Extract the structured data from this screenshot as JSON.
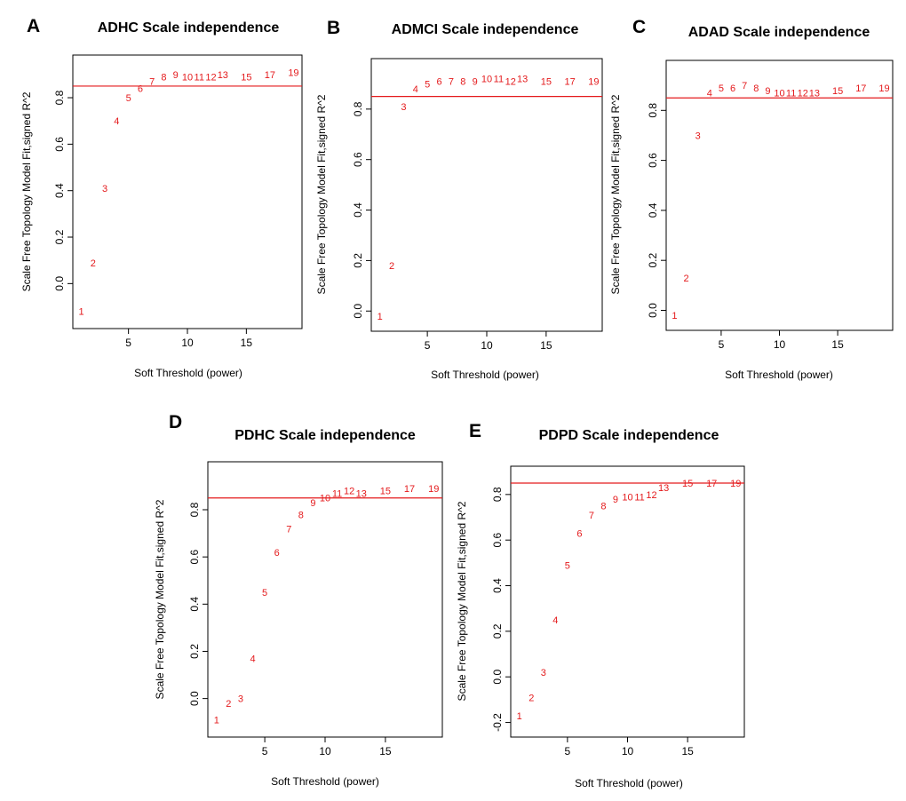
{
  "chart_data": [
    {
      "type": "scatter",
      "panel": "A",
      "title": "ADHC Scale independence",
      "xlabel": "Soft Threshold (power)",
      "ylabel": "Scale Free Topology Model Fit,signed R^2",
      "xlim": [
        1,
        19
      ],
      "ylim": [
        -0.15,
        0.94
      ],
      "xticks": [
        5,
        10,
        15
      ],
      "yticks": [
        0.0,
        0.2,
        0.4,
        0.6,
        0.8
      ],
      "threshold": 0.85,
      "threshold_color": "#e41a1c",
      "point_color": "#e41a1c",
      "points": [
        {
          "x": 1,
          "y": -0.12,
          "label": "1"
        },
        {
          "x": 2,
          "y": 0.09,
          "label": "2"
        },
        {
          "x": 3,
          "y": 0.41,
          "label": "3"
        },
        {
          "x": 4,
          "y": 0.7,
          "label": "4"
        },
        {
          "x": 5,
          "y": 0.8,
          "label": "5"
        },
        {
          "x": 6,
          "y": 0.84,
          "label": "6"
        },
        {
          "x": 7,
          "y": 0.87,
          "label": "7"
        },
        {
          "x": 8,
          "y": 0.89,
          "label": "8"
        },
        {
          "x": 9,
          "y": 0.9,
          "label": "9"
        },
        {
          "x": 10,
          "y": 0.89,
          "label": "10"
        },
        {
          "x": 11,
          "y": 0.89,
          "label": "11"
        },
        {
          "x": 12,
          "y": 0.89,
          "label": "12"
        },
        {
          "x": 13,
          "y": 0.9,
          "label": "13"
        },
        {
          "x": 15,
          "y": 0.89,
          "label": "15"
        },
        {
          "x": 17,
          "y": 0.9,
          "label": "17"
        },
        {
          "x": 19,
          "y": 0.91,
          "label": "19"
        }
      ]
    },
    {
      "type": "scatter",
      "panel": "B",
      "title": "ADMCI Scale independence",
      "xlabel": "Soft Threshold (power)",
      "ylabel": "Scale Free Topology Model Fit,signed R^2",
      "xlim": [
        1,
        19
      ],
      "ylim": [
        -0.04,
        0.96
      ],
      "xticks": [
        5,
        10,
        15
      ],
      "yticks": [
        0.0,
        0.2,
        0.4,
        0.6,
        0.8
      ],
      "threshold": 0.85,
      "threshold_color": "#e41a1c",
      "point_color": "#e41a1c",
      "points": [
        {
          "x": 1,
          "y": -0.02,
          "label": "1"
        },
        {
          "x": 2,
          "y": 0.18,
          "label": "2"
        },
        {
          "x": 3,
          "y": 0.81,
          "label": "3"
        },
        {
          "x": 4,
          "y": 0.88,
          "label": "4"
        },
        {
          "x": 5,
          "y": 0.9,
          "label": "5"
        },
        {
          "x": 6,
          "y": 0.91,
          "label": "6"
        },
        {
          "x": 7,
          "y": 0.91,
          "label": "7"
        },
        {
          "x": 8,
          "y": 0.91,
          "label": "8"
        },
        {
          "x": 9,
          "y": 0.91,
          "label": "9"
        },
        {
          "x": 10,
          "y": 0.92,
          "label": "10"
        },
        {
          "x": 11,
          "y": 0.92,
          "label": "11"
        },
        {
          "x": 12,
          "y": 0.91,
          "label": "12"
        },
        {
          "x": 13,
          "y": 0.92,
          "label": "13"
        },
        {
          "x": 15,
          "y": 0.91,
          "label": "15"
        },
        {
          "x": 17,
          "y": 0.91,
          "label": "17"
        },
        {
          "x": 19,
          "y": 0.91,
          "label": "19"
        }
      ]
    },
    {
      "type": "scatter",
      "panel": "C",
      "title": "ADAD Scale independence",
      "xlabel": "Soft Threshold (power)",
      "ylabel": "Scale Free Topology Model Fit,signed R^2",
      "xlim": [
        1,
        19
      ],
      "ylim": [
        -0.04,
        0.96
      ],
      "xticks": [
        5,
        10,
        15
      ],
      "yticks": [
        0.0,
        0.2,
        0.4,
        0.6,
        0.8
      ],
      "threshold": 0.85,
      "threshold_color": "#e41a1c",
      "point_color": "#e41a1c",
      "points": [
        {
          "x": 1,
          "y": -0.02,
          "label": "1"
        },
        {
          "x": 2,
          "y": 0.13,
          "label": "2"
        },
        {
          "x": 3,
          "y": 0.7,
          "label": "3"
        },
        {
          "x": 4,
          "y": 0.87,
          "label": "4"
        },
        {
          "x": 5,
          "y": 0.89,
          "label": "5"
        },
        {
          "x": 6,
          "y": 0.89,
          "label": "6"
        },
        {
          "x": 7,
          "y": 0.9,
          "label": "7"
        },
        {
          "x": 8,
          "y": 0.89,
          "label": "8"
        },
        {
          "x": 9,
          "y": 0.88,
          "label": "9"
        },
        {
          "x": 10,
          "y": 0.87,
          "label": "10"
        },
        {
          "x": 11,
          "y": 0.87,
          "label": "11"
        },
        {
          "x": 12,
          "y": 0.87,
          "label": "12"
        },
        {
          "x": 13,
          "y": 0.87,
          "label": "13"
        },
        {
          "x": 15,
          "y": 0.88,
          "label": "15"
        },
        {
          "x": 17,
          "y": 0.89,
          "label": "17"
        },
        {
          "x": 19,
          "y": 0.89,
          "label": "19"
        }
      ]
    },
    {
      "type": "scatter",
      "panel": "D",
      "title": "PDHC Scale independence",
      "xlabel": "Soft Threshold (power)",
      "ylabel": "Scale Free Topology Model Fit,signed R^2",
      "xlim": [
        1,
        19
      ],
      "ylim": [
        -0.12,
        0.96
      ],
      "xticks": [
        5,
        10,
        15
      ],
      "yticks": [
        0.0,
        0.2,
        0.4,
        0.6,
        0.8
      ],
      "threshold": 0.85,
      "threshold_color": "#e41a1c",
      "point_color": "#e41a1c",
      "points": [
        {
          "x": 1,
          "y": -0.09,
          "label": "1"
        },
        {
          "x": 2,
          "y": -0.02,
          "label": "2"
        },
        {
          "x": 3,
          "y": 0.0,
          "label": "3"
        },
        {
          "x": 4,
          "y": 0.17,
          "label": "4"
        },
        {
          "x": 5,
          "y": 0.45,
          "label": "5"
        },
        {
          "x": 6,
          "y": 0.62,
          "label": "6"
        },
        {
          "x": 7,
          "y": 0.72,
          "label": "7"
        },
        {
          "x": 8,
          "y": 0.78,
          "label": "8"
        },
        {
          "x": 9,
          "y": 0.83,
          "label": "9"
        },
        {
          "x": 10,
          "y": 0.85,
          "label": "10"
        },
        {
          "x": 11,
          "y": 0.87,
          "label": "11"
        },
        {
          "x": 12,
          "y": 0.88,
          "label": "12"
        },
        {
          "x": 13,
          "y": 0.87,
          "label": "13"
        },
        {
          "x": 15,
          "y": 0.88,
          "label": "15"
        },
        {
          "x": 17,
          "y": 0.89,
          "label": "17"
        },
        {
          "x": 19,
          "y": 0.89,
          "label": "19"
        }
      ]
    },
    {
      "type": "scatter",
      "panel": "E",
      "title": "PDPD Scale independence",
      "xlabel": "Soft Threshold (power)",
      "ylabel": "Scale Free Topology Model Fit,signed R^2",
      "xlim": [
        1,
        19
      ],
      "ylim": [
        -0.22,
        0.88
      ],
      "xticks": [
        5,
        10,
        15
      ],
      "yticks": [
        -0.2,
        0.0,
        0.2,
        0.4,
        0.6,
        0.8
      ],
      "threshold": 0.85,
      "threshold_color": "#e41a1c",
      "point_color": "#e41a1c",
      "points": [
        {
          "x": 1,
          "y": -0.17,
          "label": "1"
        },
        {
          "x": 2,
          "y": -0.09,
          "label": "2"
        },
        {
          "x": 3,
          "y": 0.02,
          "label": "3"
        },
        {
          "x": 4,
          "y": 0.25,
          "label": "4"
        },
        {
          "x": 5,
          "y": 0.49,
          "label": "5"
        },
        {
          "x": 6,
          "y": 0.63,
          "label": "6"
        },
        {
          "x": 7,
          "y": 0.71,
          "label": "7"
        },
        {
          "x": 8,
          "y": 0.75,
          "label": "8"
        },
        {
          "x": 9,
          "y": 0.78,
          "label": "9"
        },
        {
          "x": 10,
          "y": 0.79,
          "label": "10"
        },
        {
          "x": 11,
          "y": 0.79,
          "label": "11"
        },
        {
          "x": 12,
          "y": 0.8,
          "label": "12"
        },
        {
          "x": 13,
          "y": 0.83,
          "label": "13"
        },
        {
          "x": 15,
          "y": 0.85,
          "label": "15"
        },
        {
          "x": 17,
          "y": 0.85,
          "label": "17"
        },
        {
          "x": 19,
          "y": 0.85,
          "label": "19"
        }
      ]
    }
  ]
}
